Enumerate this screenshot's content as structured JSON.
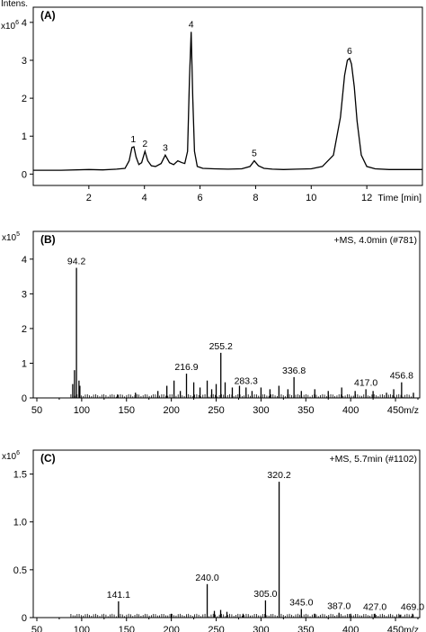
{
  "chart_data": [
    {
      "type": "line",
      "panel_label": "(A)",
      "ylabel": "Intens.",
      "y_multiplier": "x10",
      "y_multiplier_exp": "6",
      "xlabel": "Time [min]",
      "xlim": [
        0.0,
        14.0
      ],
      "ylim": [
        -0.3,
        4.4
      ],
      "x_ticks": [
        2,
        4,
        6,
        8,
        10,
        12
      ],
      "y_ticks": [
        0,
        1,
        2,
        3,
        4
      ],
      "grid": false,
      "series": [
        {
          "x": [
            0.0,
            1.0,
            2.0,
            2.5,
            3.0,
            3.3,
            3.45,
            3.55,
            3.62,
            3.7,
            3.8,
            3.9,
            4.02,
            4.12,
            4.25,
            4.4,
            4.6,
            4.75,
            4.9,
            5.05,
            5.2,
            5.35,
            5.45,
            5.55,
            5.62,
            5.68,
            5.74,
            5.8,
            5.9,
            6.1,
            6.5,
            7.0,
            7.5,
            7.8,
            7.95,
            8.1,
            8.3,
            8.6,
            9.0,
            9.5,
            10.0,
            10.4,
            10.8,
            11.05,
            11.2,
            11.3,
            11.38,
            11.45,
            11.55,
            11.65,
            11.8,
            12.0,
            12.3,
            12.8,
            13.5,
            14.0
          ],
          "y": [
            0.1,
            0.1,
            0.12,
            0.11,
            0.13,
            0.15,
            0.35,
            0.7,
            0.72,
            0.45,
            0.25,
            0.3,
            0.6,
            0.35,
            0.22,
            0.2,
            0.28,
            0.5,
            0.3,
            0.25,
            0.35,
            0.3,
            0.28,
            0.6,
            2.5,
            3.75,
            2.0,
            0.6,
            0.2,
            0.15,
            0.14,
            0.13,
            0.14,
            0.2,
            0.35,
            0.22,
            0.15,
            0.13,
            0.12,
            0.13,
            0.14,
            0.2,
            0.5,
            1.5,
            2.6,
            3.0,
            3.05,
            2.9,
            2.3,
            1.4,
            0.5,
            0.2,
            0.14,
            0.12,
            0.12,
            0.12
          ]
        }
      ],
      "peak_labels": [
        {
          "label": "1",
          "x": 3.6,
          "y": 0.72
        },
        {
          "label": "2",
          "x": 4.02,
          "y": 0.6
        },
        {
          "label": "3",
          "x": 4.75,
          "y": 0.5
        },
        {
          "label": "4",
          "x": 5.68,
          "y": 3.75
        },
        {
          "label": "5",
          "x": 7.95,
          "y": 0.35
        },
        {
          "label": "6",
          "x": 11.38,
          "y": 3.05
        }
      ]
    },
    {
      "type": "bar",
      "panel_label": "(B)",
      "header": "+MS, 4.0min (#781)",
      "y_multiplier": "x10",
      "y_multiplier_exp": "5",
      "xlabel": "m/z",
      "xlim": [
        46,
        477
      ],
      "ylim": [
        0,
        4.8
      ],
      "x_ticks": [
        50,
        100,
        150,
        200,
        250,
        300,
        350,
        400,
        450
      ],
      "y_ticks": [
        0,
        1,
        2,
        3,
        4
      ],
      "grid": false,
      "x": [
        90,
        92,
        94.2,
        97,
        98,
        140,
        160,
        185,
        195,
        203,
        210,
        216.9,
        225,
        232,
        240,
        245,
        250,
        255.2,
        260,
        268,
        276,
        283.3,
        290,
        300,
        310,
        320,
        330,
        336.8,
        345,
        360,
        375,
        390,
        405,
        417.0,
        425,
        440,
        448,
        456.8,
        470
      ],
      "values": [
        0.4,
        0.8,
        3.75,
        0.5,
        0.35,
        0.1,
        0.15,
        0.2,
        0.35,
        0.5,
        0.2,
        0.7,
        0.45,
        0.3,
        0.5,
        0.25,
        0.4,
        1.3,
        0.45,
        0.3,
        0.35,
        0.3,
        0.2,
        0.3,
        0.25,
        0.35,
        0.25,
        0.6,
        0.2,
        0.25,
        0.2,
        0.3,
        0.2,
        0.25,
        0.2,
        0.15,
        0.25,
        0.45,
        0.15
      ],
      "annotations": [
        {
          "text": "94.2",
          "x": 94.2,
          "y": 3.75
        },
        {
          "text": "216.9",
          "x": 216.9,
          "y": 0.7
        },
        {
          "text": "255.2",
          "x": 255.2,
          "y": 1.3
        },
        {
          "text": "283.3",
          "x": 283.3,
          "y": 0.3
        },
        {
          "text": "336.8",
          "x": 336.8,
          "y": 0.6
        },
        {
          "text": "417.0",
          "x": 417.0,
          "y": 0.25
        },
        {
          "text": "456.8",
          "x": 456.8,
          "y": 0.45
        }
      ]
    },
    {
      "type": "bar",
      "panel_label": "(C)",
      "header": "+MS, 5.7min (#1102)",
      "y_multiplier": "x10",
      "y_multiplier_exp": "6",
      "xlabel": "m/z",
      "xlim": [
        46,
        477
      ],
      "ylim": [
        0,
        1.75
      ],
      "x_ticks": [
        50,
        100,
        150,
        200,
        250,
        300,
        350,
        400,
        450
      ],
      "x_tick_labels": [
        "50",
        "100",
        "150",
        "200",
        "250",
        "300",
        "350",
        "400",
        "450"
      ],
      "y_ticks": [
        0,
        0.5,
        1.0,
        1.5
      ],
      "y_tick_labels": [
        "0",
        "0.5",
        "1.0",
        "1.5"
      ],
      "grid": false,
      "x": [
        141.1,
        200,
        240.0,
        248,
        255,
        262,
        280,
        305.0,
        320.2,
        345.0,
        360,
        387.0,
        400,
        427.0,
        455,
        469.0
      ],
      "values": [
        0.17,
        0.04,
        0.35,
        0.07,
        0.08,
        0.06,
        0.04,
        0.18,
        1.42,
        0.09,
        0.04,
        0.05,
        0.04,
        0.04,
        0.03,
        0.04
      ],
      "annotations": [
        {
          "text": "141.1",
          "x": 141.1,
          "y": 0.17
        },
        {
          "text": "240.0",
          "x": 240.0,
          "y": 0.35
        },
        {
          "text": "305.0",
          "x": 305.0,
          "y": 0.18
        },
        {
          "text": "320.2",
          "x": 320.2,
          "y": 1.42
        },
        {
          "text": "345.0",
          "x": 345.0,
          "y": 0.09
        },
        {
          "text": "387.0",
          "x": 387.0,
          "y": 0.05
        },
        {
          "text": "427.0",
          "x": 427.0,
          "y": 0.04
        },
        {
          "text": "469.0",
          "x": 469.0,
          "y": 0.04
        }
      ]
    }
  ]
}
